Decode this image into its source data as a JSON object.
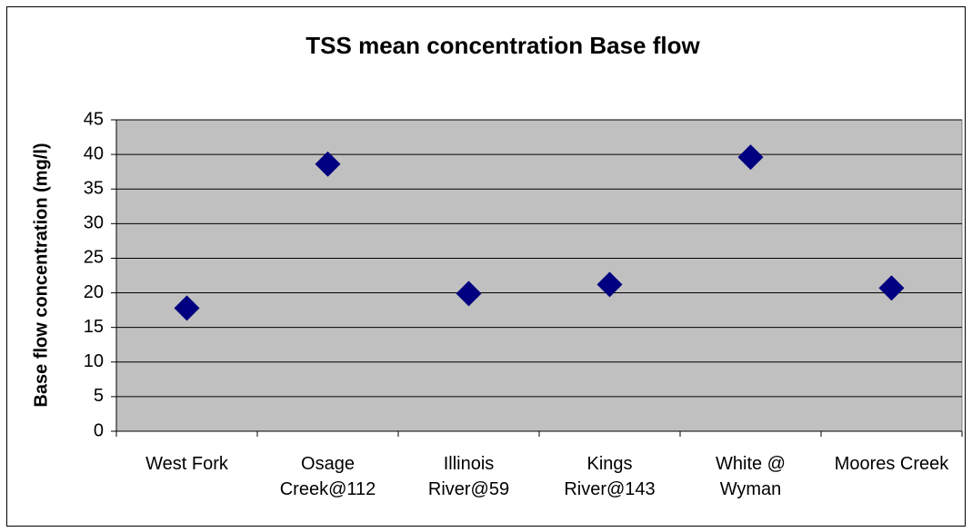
{
  "chart_data": {
    "type": "scatter",
    "title": "TSS mean concentration Base flow",
    "y_label": "Base flow concentration (mg/l)",
    "categories": [
      "West Fork",
      "Osage Creek@112",
      "Illinois River@59",
      "Kings River@143",
      "White @ Wyman",
      "Moores Creek"
    ],
    "values": [
      17.8,
      38.6,
      19.9,
      21.2,
      39.6,
      20.7
    ],
    "color": "#000080",
    "ylim": [
      0,
      45
    ],
    "yticks": [
      0,
      5,
      10,
      15,
      20,
      25,
      30,
      35,
      40,
      45
    ],
    "grid": true
  }
}
